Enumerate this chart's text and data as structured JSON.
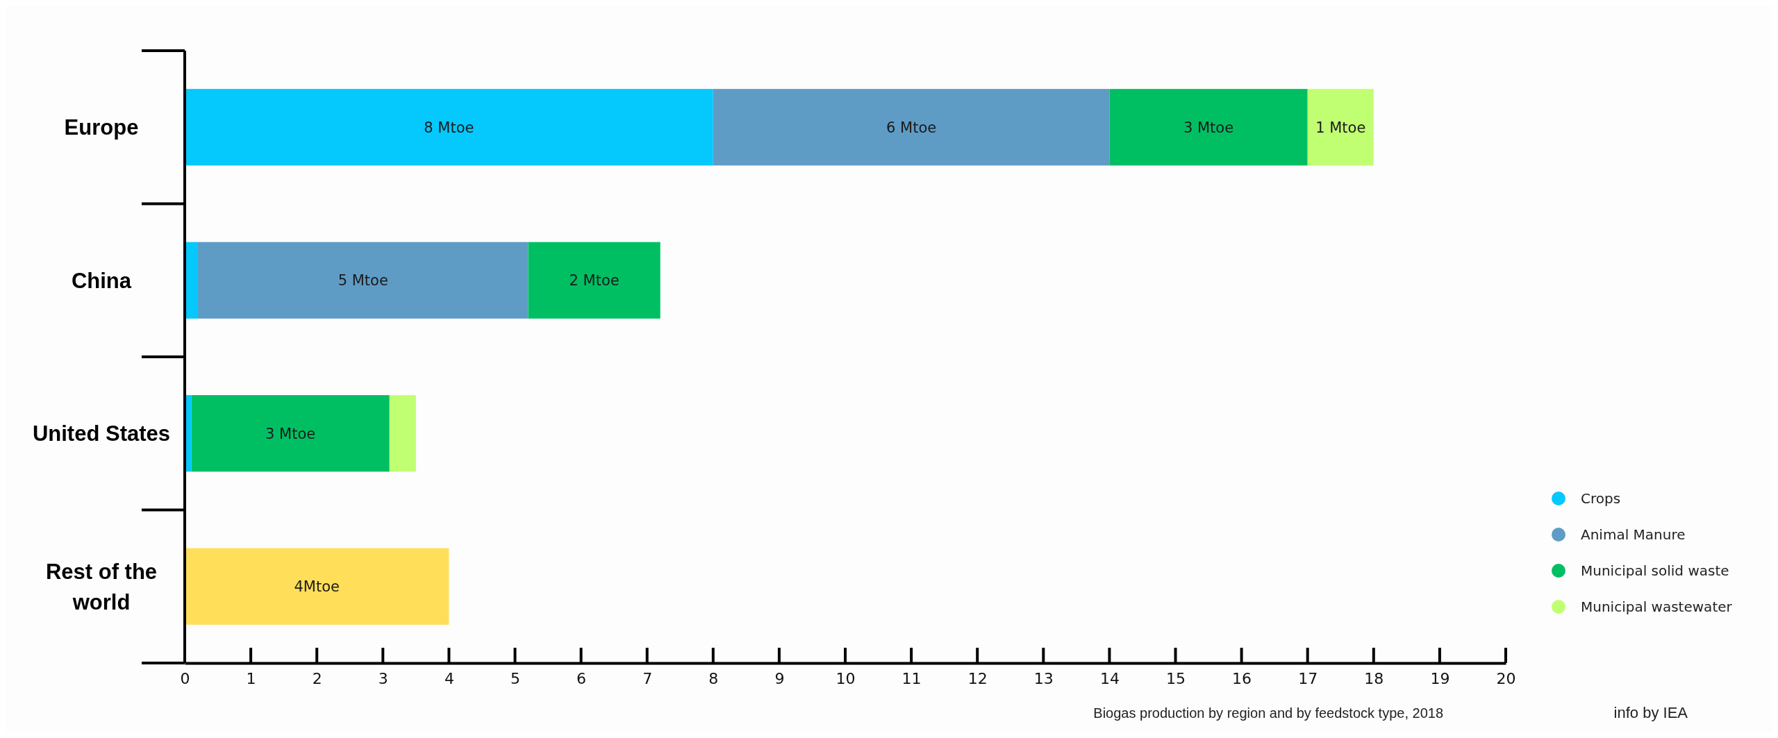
{
  "chart_data": {
    "type": "bar",
    "orientation": "horizontal",
    "stacked": true,
    "categories": [
      "Europe",
      "China",
      "United States",
      "Rest of the world"
    ],
    "series": [
      {
        "name": "Crops",
        "color": "#05c8fd",
        "values": [
          8,
          0.2,
          0.1,
          null
        ],
        "value_labels": [
          "8 Mtoe",
          null,
          null,
          null
        ]
      },
      {
        "name": "Animal Manure",
        "color": "#5e9cc6",
        "values": [
          6,
          5,
          null,
          null
        ],
        "value_labels": [
          "6 Mtoe",
          "5 Mtoe",
          null,
          null
        ]
      },
      {
        "name": "Municipal solid waste",
        "color": "#00bf63",
        "values": [
          3,
          2,
          3,
          null
        ],
        "value_labels": [
          "3 Mtoe",
          "2 Mtoe",
          "3 Mtoe",
          null
        ]
      },
      {
        "name": "Municipal wastewater",
        "color": "#c1ff72",
        "values": [
          1,
          null,
          0.4,
          null
        ],
        "value_labels": [
          "1 Mtoe",
          null,
          null,
          null
        ]
      },
      {
        "color": "#ffde59",
        "values": [
          null,
          null,
          null,
          4
        ],
        "value_labels": [
          null,
          null,
          null,
          "4Mtoe"
        ]
      }
    ],
    "xlim": [
      0,
      20
    ],
    "xticks": [
      0,
      1,
      2,
      3,
      4,
      5,
      6,
      7,
      8,
      9,
      10,
      11,
      12,
      13,
      14,
      15,
      16,
      17,
      18,
      19,
      20
    ],
    "legend": "bottom right",
    "annotations": [
      "Biogas production by region and by feedstock type, 2018",
      "info by IEA"
    ]
  }
}
